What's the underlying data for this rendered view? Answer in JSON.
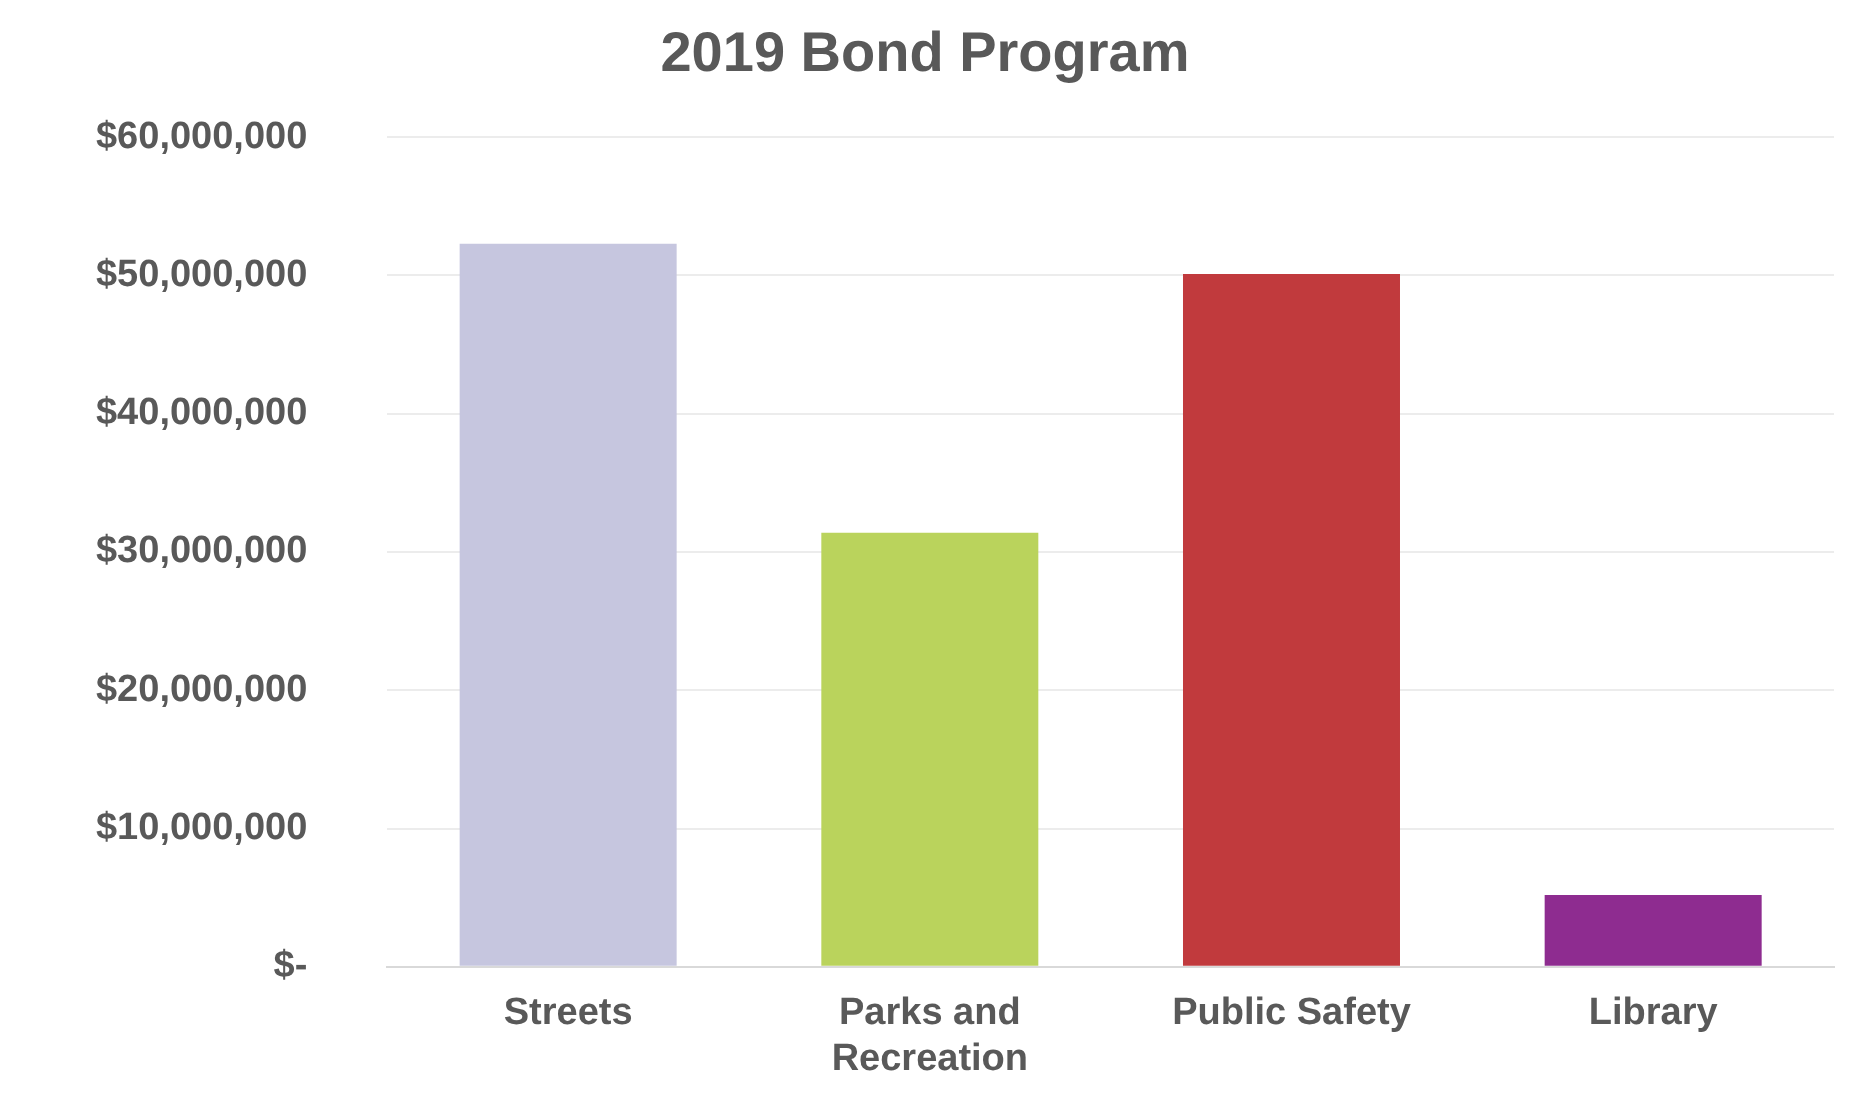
{
  "chart_data": {
    "type": "bar",
    "title": "2019 Bond Program",
    "categories": [
      "Streets",
      "Parks and Recreation",
      "Public Safety",
      "Library"
    ],
    "values": [
      52300000,
      31400000,
      50100000,
      5200000
    ],
    "colors": [
      "#c6c6df",
      "#bad35c",
      "#c13a3d",
      "#8e2c90"
    ],
    "ylim": [
      0,
      60000000
    ],
    "yticks": [
      {
        "value": 0,
        "label": "$-"
      },
      {
        "value": 10000000,
        "label": "$10,000,000"
      },
      {
        "value": 20000000,
        "label": "$20,000,000"
      },
      {
        "value": 30000000,
        "label": "$30,000,000"
      },
      {
        "value": 40000000,
        "label": "$40,000,000"
      },
      {
        "value": 50000000,
        "label": "$50,000,000"
      },
      {
        "value": 60000000,
        "label": "$60,000,000"
      }
    ],
    "grid": "y",
    "legend": false
  }
}
